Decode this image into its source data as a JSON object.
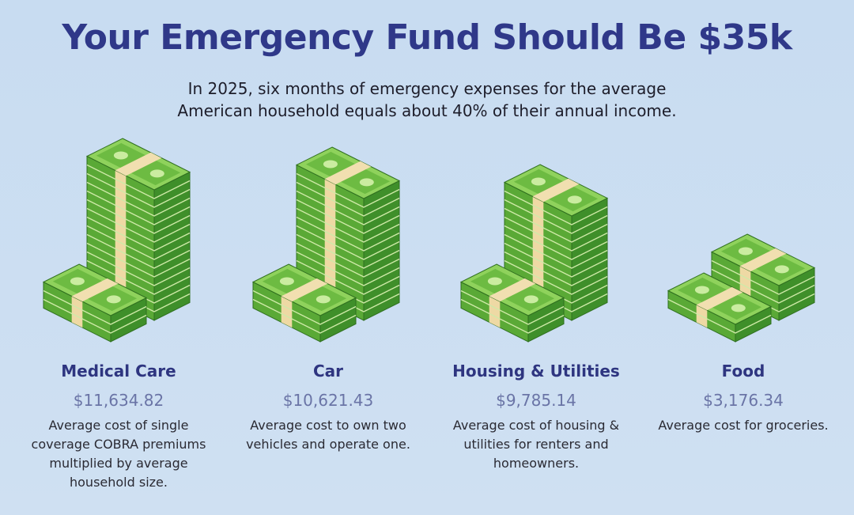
{
  "header": {
    "title": "Your Emergency Fund Should Be $35k",
    "subtitle_lines": [
      "In 2025, six months of emergency expenses for the average",
      "American household equals about 40% of their annual income."
    ]
  },
  "items": [
    {
      "label": "Medical Care",
      "amount": "$11,634.82",
      "description": "Average cost of single coverage COBRA premiums multiplied by average household size."
    },
    {
      "label": "Car",
      "amount": "$10,621.43",
      "description": "Average cost to own two vehicles and operate one."
    },
    {
      "label": "Housing & Utilities",
      "amount": "$9,785.14",
      "description": "Average cost of housing & utilities for renters and homeowners."
    },
    {
      "label": "Food",
      "amount": "$3,176.34",
      "description": "Average cost for groceries."
    }
  ]
}
